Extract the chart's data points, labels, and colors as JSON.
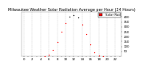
{
  "title": "Milwaukee Weather Solar Radiation Average per Hour (24 Hours)",
  "background_color": "#ffffff",
  "plot_bg_color": "#ffffff",
  "grid_color": "#aaaaaa",
  "dot_color": "#ff0000",
  "dot_color2": "#000000",
  "legend_color": "#ff0000",
  "hours": [
    0,
    1,
    2,
    3,
    4,
    5,
    6,
    7,
    8,
    9,
    10,
    11,
    12,
    13,
    14,
    15,
    16,
    17,
    18,
    19,
    20,
    21,
    22,
    23
  ],
  "solar": [
    0,
    0,
    0,
    0,
    0,
    2,
    18,
    65,
    148,
    246,
    338,
    404,
    422,
    394,
    322,
    222,
    120,
    42,
    8,
    1,
    0,
    0,
    0,
    0
  ],
  "ylim": [
    0,
    450
  ],
  "xlim": [
    -0.5,
    23.5
  ],
  "ytick_vals": [
    50,
    100,
    150,
    200,
    250,
    300,
    350,
    400
  ],
  "title_fontsize": 3.5,
  "tick_fontsize": 2.8,
  "legend_label": "Solar Rad",
  "markersize": 1.0,
  "peak_indices": [
    11,
    12,
    13
  ]
}
